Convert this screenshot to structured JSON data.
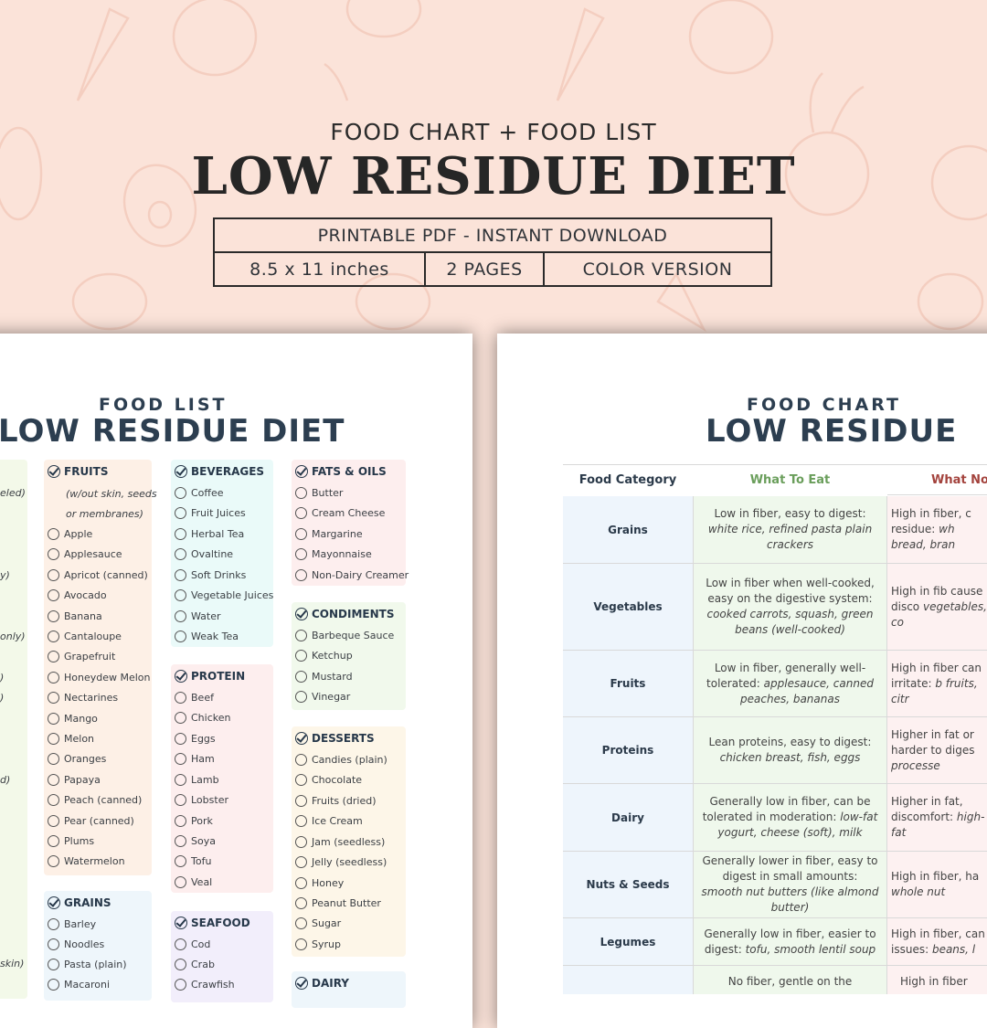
{
  "header": {
    "subtitle": "FOOD CHART + FOOD LIST",
    "title": "LOW RESIDUE DIET",
    "info_top": "PRINTABLE PDF - INSTANT DOWNLOAD",
    "info_size": "8.5 x 11 inches",
    "info_pages": "2 PAGES",
    "info_version": "COLOR VERSION"
  },
  "food_list": {
    "small_title": "FOOD LIST",
    "big_title": "LOW RESIDUE DIET",
    "left_edge_fragments": [
      "eled)",
      "y)",
      "only)",
      ")",
      ")",
      "d)",
      "skin)"
    ],
    "fruits": {
      "label": "FRUITS",
      "note_1": "(w/out skin, seeds",
      "note_2": "or membranes)",
      "items": [
        "Apple",
        "Applesauce",
        "Apricot (canned)",
        "Avocado",
        "Banana",
        "Cantaloupe",
        "Grapefruit",
        "Honeydew Melon",
        "Nectarines",
        "Mango",
        "Melon",
        "Oranges",
        "Papaya",
        "Peach (canned)",
        "Pear (canned)",
        "Plums",
        "Watermelon"
      ]
    },
    "grains": {
      "label": "GRAINS",
      "items": [
        "Barley",
        "Noodles",
        "Pasta (plain)",
        "Macaroni"
      ]
    },
    "beverages": {
      "label": "BEVERAGES",
      "items": [
        "Coffee",
        "Fruit Juices",
        "Herbal Tea",
        "Ovaltine",
        "Soft Drinks",
        "Vegetable Juices",
        "Water",
        "Weak Tea"
      ]
    },
    "protein": {
      "label": "PROTEIN",
      "items": [
        "Beef",
        "Chicken",
        "Eggs",
        "Ham",
        "Lamb",
        "Lobster",
        "Pork",
        "Soya",
        "Tofu",
        "Veal"
      ]
    },
    "seafood": {
      "label": "SEAFOOD",
      "items": [
        "Cod",
        "Crab",
        "Crawfish"
      ]
    },
    "fats_oils": {
      "label": "FATS & OILS",
      "items": [
        "Butter",
        "Cream Cheese",
        "Margarine",
        "Mayonnaise",
        "Non-Dairy Creamer"
      ]
    },
    "condiments": {
      "label": "CONDIMENTS",
      "items": [
        "Barbeque Sauce",
        "Ketchup",
        "Mustard",
        "Vinegar"
      ]
    },
    "desserts": {
      "label": "DESSERTS",
      "items": [
        "Candies (plain)",
        "Chocolate",
        "Fruits (dried)",
        "Ice Cream",
        "Jam (seedless)",
        "Jelly (seedless)",
        "Honey",
        "Peanut Butter",
        "Sugar",
        "Syrup"
      ]
    },
    "dairy": {
      "label": "DAIRY"
    }
  },
  "food_chart": {
    "small_title": "FOOD CHART",
    "big_title": "LOW RESIDUE",
    "headers": {
      "category": "Food Category",
      "eat": "What To Eat",
      "not": "What Not"
    },
    "colors": {
      "eat_header": "#6a9e5b",
      "not_header": "#a3423c"
    },
    "rows": [
      {
        "category": "Grains",
        "eat_plain": "Low in fiber, easy to digest:",
        "eat_italic": "white rice, refined pasta plain crackers",
        "not_plain": "High in fiber, c residue:",
        "not_italic": "wh bread, bran"
      },
      {
        "category": "Vegetables",
        "eat_plain": "Low in fiber when well-cooked, easy on the digestive system:",
        "eat_italic": "cooked carrots, squash, green beans (well-cooked)",
        "not_plain": "High in fib cause disco",
        "not_italic": "vegetables, co"
      },
      {
        "category": "Fruits",
        "eat_plain": "Low in fiber, generally well-tolerated:",
        "eat_italic": "applesauce, canned peaches, bananas",
        "not_plain": "High in fiber can irritate:",
        "not_italic": "b fruits, citr"
      },
      {
        "category": "Proteins",
        "eat_plain": "Lean proteins, easy to digest:",
        "eat_italic": "chicken breast, fish, eggs",
        "not_plain": "Higher in fat or harder to diges",
        "not_italic": "processe"
      },
      {
        "category": "Dairy",
        "eat_plain": "Generally low in fiber, can be tolerated in moderation:",
        "eat_italic": "low-fat yogurt, cheese (soft), milk",
        "not_plain": "Higher in fat, discomfort:",
        "not_italic": "high-fat"
      },
      {
        "category": "Nuts & Seeds",
        "eat_plain": "Generally lower in fiber, easy to digest in small amounts:",
        "eat_italic": "smooth nut butters (like almond butter)",
        "not_plain": "High in fiber, ha",
        "not_italic": "whole nut"
      },
      {
        "category": "Legumes",
        "eat_plain": "Generally low in fiber, easier to digest:",
        "eat_italic": "tofu, smooth lentil soup",
        "not_plain": "High in fiber, can issues:",
        "not_italic": "beans, l"
      },
      {
        "category": "",
        "eat_plain": "No fiber, gentle on the",
        "eat_italic": "",
        "not_plain": "High in fiber",
        "not_italic": ""
      }
    ]
  }
}
